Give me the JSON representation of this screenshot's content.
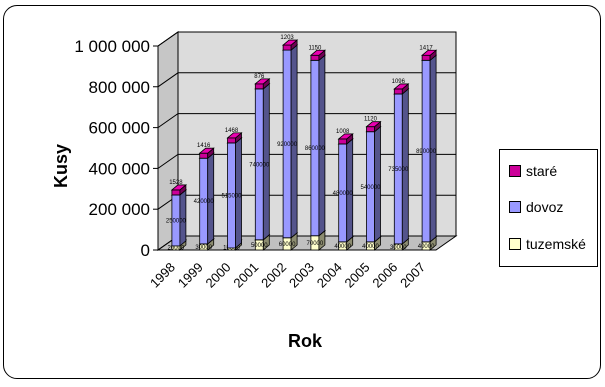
{
  "chart_data": {
    "type": "bar",
    "stacked": true,
    "style": "3d",
    "ylabel": "Kusy",
    "xlabel": "Rok",
    "ylim": [
      0,
      1000000
    ],
    "yticks": [
      0,
      200000,
      400000,
      600000,
      800000,
      1000000
    ],
    "ytick_labels": [
      "0",
      "200 000",
      "400 000",
      "600 000",
      "800 000",
      "1 000 000"
    ],
    "categories": [
      "1998",
      "1999",
      "2000",
      "2001",
      "2002",
      "2003",
      "2004",
      "2005",
      "2006",
      "2007"
    ],
    "series": [
      {
        "name": "tuzemské",
        "color": "#ffffcc",
        "values": [
          20000,
          30000,
          10000,
          50000,
          60000,
          70000,
          40000,
          40000,
          30000,
          40000
        ]
      },
      {
        "name": "dovoz",
        "color": "#9999ff",
        "values": [
          250000,
          420000,
          515000,
          740000,
          920000,
          860000,
          480000,
          540000,
          735000,
          890000
        ]
      },
      {
        "name": "staré",
        "color": "#cc0099",
        "values": [
          1528,
          1416,
          1468,
          876,
          1203,
          1150,
          1008,
          1120,
          1096,
          1417
        ]
      }
    ],
    "grid": true,
    "legend_position": "right"
  }
}
